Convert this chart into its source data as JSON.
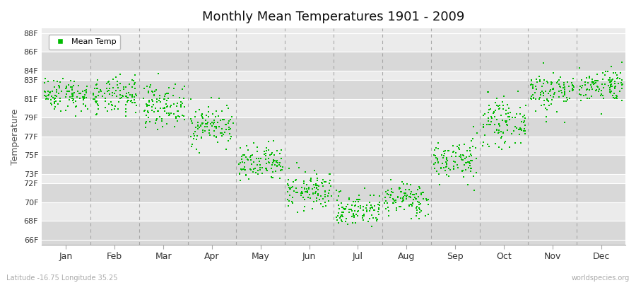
{
  "title": "Monthly Mean Temperatures 1901 - 2009",
  "ylabel": "Temperature",
  "xlabel_labels": [
    "Jan",
    "Feb",
    "Mar",
    "Apr",
    "May",
    "Jun",
    "Jul",
    "Aug",
    "Sep",
    "Oct",
    "Nov",
    "Dec"
  ],
  "ytick_labels": [
    "66F",
    "68F",
    "70F",
    "72F",
    "73F",
    "75F",
    "77F",
    "79F",
    "81F",
    "83F",
    "84F",
    "86F",
    "88F"
  ],
  "ytick_values": [
    66,
    68,
    70,
    72,
    73,
    75,
    77,
    79,
    81,
    83,
    84,
    86,
    88
  ],
  "ylim": [
    65.5,
    88.5
  ],
  "dot_color": "#00bb00",
  "dot_size": 3,
  "background_color": "#ffffff",
  "plot_bg_light": "#ebebeb",
  "plot_bg_dark": "#d8d8d8",
  "dashed_line_color": "#999999",
  "legend_label": "Mean Temp",
  "bottom_left_text": "Latitude -16.75 Longitude 35.25",
  "bottom_right_text": "worldspecies.org",
  "month_mean_temps": [
    81.5,
    81.2,
    80.3,
    78.2,
    74.0,
    71.2,
    69.2,
    70.3,
    74.5,
    78.5,
    81.8,
    82.5
  ],
  "month_std": [
    0.9,
    1.0,
    1.1,
    1.1,
    1.0,
    1.0,
    0.9,
    0.9,
    1.1,
    1.2,
    1.1,
    0.9
  ],
  "num_years": 109,
  "seed": 42
}
